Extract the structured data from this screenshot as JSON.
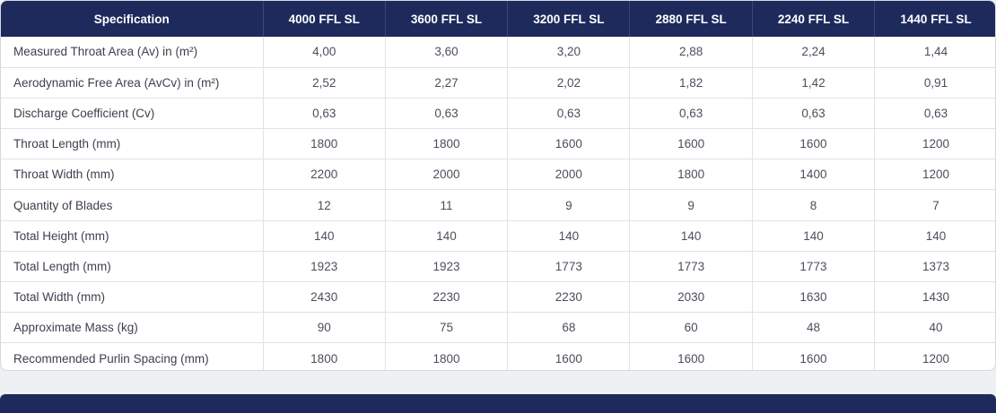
{
  "table": {
    "columns": [
      "Specification",
      "4000 FFL SL",
      "3600 FFL SL",
      "3200 FFL SL",
      "2880 FFL SL",
      "2240 FFL SL",
      "1440 FFL SL"
    ],
    "rows": [
      {
        "label": "Measured Throat Area (Av) in (m²)",
        "values": [
          "4,00",
          "3,60",
          "3,20",
          "2,88",
          "2,24",
          "1,44"
        ]
      },
      {
        "label": "Aerodynamic Free Area (AvCv) in (m²)",
        "values": [
          "2,52",
          "2,27",
          "2,02",
          "1,82",
          "1,42",
          "0,91"
        ]
      },
      {
        "label": "Discharge Coefficient (Cv)",
        "values": [
          "0,63",
          "0,63",
          "0,63",
          "0,63",
          "0,63",
          "0,63"
        ]
      },
      {
        "label": "Throat Length (mm)",
        "values": [
          "1800",
          "1800",
          "1600",
          "1600",
          "1600",
          "1200"
        ]
      },
      {
        "label": "Throat Width (mm)",
        "values": [
          "2200",
          "2000",
          "2000",
          "1800",
          "1400",
          "1200"
        ]
      },
      {
        "label": "Quantity of Blades",
        "values": [
          "12",
          "11",
          "9",
          "9",
          "8",
          "7"
        ]
      },
      {
        "label": "Total Height (mm)",
        "values": [
          "140",
          "140",
          "140",
          "140",
          "140",
          "140"
        ]
      },
      {
        "label": "Total Length (mm)",
        "values": [
          "1923",
          "1923",
          "1773",
          "1773",
          "1773",
          "1373"
        ]
      },
      {
        "label": "Total Width (mm)",
        "values": [
          "2430",
          "2230",
          "2230",
          "2030",
          "1630",
          "1430"
        ]
      },
      {
        "label": "Approximate Mass (kg)",
        "values": [
          "90",
          "75",
          "68",
          "60",
          "48",
          "40"
        ]
      },
      {
        "label": "Recommended Purlin Spacing (mm)",
        "values": [
          "1800",
          "1800",
          "1600",
          "1600",
          "1600",
          "1200"
        ]
      }
    ]
  },
  "colors": {
    "header_bg": "#1d2a5b",
    "header_text": "#ffffff",
    "body_text": "#4a4f5c",
    "grid_line": "#dfe2e8"
  }
}
